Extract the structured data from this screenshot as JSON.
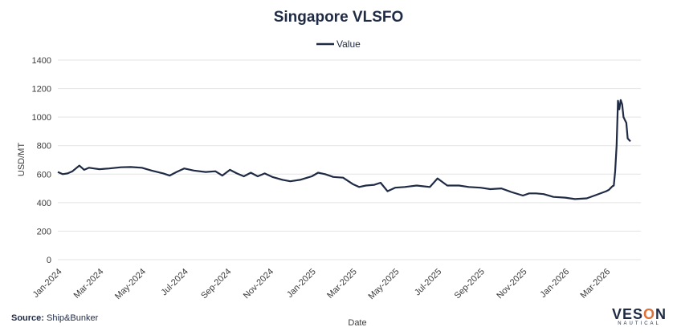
{
  "chart_data": {
    "type": "line",
    "title": "Singapore VLSFO",
    "xlabel": "Date",
    "ylabel": "USD/MT",
    "ylim": [
      0,
      1400
    ],
    "yticks": [
      0,
      200,
      400,
      600,
      800,
      1000,
      1200,
      1400
    ],
    "xlim": [
      "2024-01-01",
      "2026-04-20"
    ],
    "xticks": [
      "Jan-2024",
      "Mar-2024",
      "May-2024",
      "Jul-2024",
      "Sep-2024",
      "Nov-2024",
      "Jan-2025",
      "Mar-2025",
      "May-2025",
      "Jul-2025",
      "Sep-2025",
      "Nov-2025",
      "Jan-2026",
      "Mar-2026"
    ],
    "xtick_dates": [
      "2024-01-01",
      "2024-03-01",
      "2024-05-01",
      "2024-07-01",
      "2024-09-01",
      "2024-11-01",
      "2025-01-01",
      "2025-03-01",
      "2025-05-01",
      "2025-07-01",
      "2025-09-01",
      "2025-11-01",
      "2026-01-01",
      "2026-03-01"
    ],
    "grid": true,
    "legend_position": "top-center",
    "series": [
      {
        "name": "Value",
        "color": "#1f2a44",
        "x": [
          "2024-01-01",
          "2024-01-08",
          "2024-01-15",
          "2024-01-22",
          "2024-02-01",
          "2024-02-08",
          "2024-02-15",
          "2024-02-22",
          "2024-03-01",
          "2024-03-15",
          "2024-04-01",
          "2024-04-15",
          "2024-05-01",
          "2024-05-15",
          "2024-06-01",
          "2024-06-10",
          "2024-06-20",
          "2024-07-01",
          "2024-07-15",
          "2024-08-01",
          "2024-08-15",
          "2024-08-25",
          "2024-09-05",
          "2024-09-15",
          "2024-09-25",
          "2024-10-05",
          "2024-10-15",
          "2024-10-25",
          "2024-11-05",
          "2024-11-20",
          "2024-12-01",
          "2024-12-15",
          "2025-01-01",
          "2025-01-10",
          "2025-01-20",
          "2025-02-01",
          "2025-02-15",
          "2025-03-01",
          "2025-03-10",
          "2025-03-20",
          "2025-04-01",
          "2025-04-10",
          "2025-04-20",
          "2025-05-01",
          "2025-05-15",
          "2025-06-01",
          "2025-06-10",
          "2025-06-20",
          "2025-07-01",
          "2025-07-15",
          "2025-08-01",
          "2025-08-15",
          "2025-09-01",
          "2025-09-15",
          "2025-10-01",
          "2025-10-15",
          "2025-11-01",
          "2025-11-10",
          "2025-11-20",
          "2025-12-01",
          "2025-12-15",
          "2026-01-01",
          "2026-01-15",
          "2026-02-01",
          "2026-02-15",
          "2026-03-01",
          "2026-03-05",
          "2026-03-08",
          "2026-03-10",
          "2026-03-12",
          "2026-03-14",
          "2026-03-16",
          "2026-03-18",
          "2026-03-20",
          "2026-03-22",
          "2026-03-24",
          "2026-03-26",
          "2026-03-28",
          "2026-03-30",
          "2026-04-01",
          "2026-04-05"
        ],
        "values": [
          615,
          600,
          605,
          620,
          660,
          630,
          645,
          640,
          635,
          640,
          648,
          650,
          645,
          625,
          605,
          590,
          615,
          640,
          625,
          615,
          620,
          590,
          630,
          605,
          585,
          610,
          585,
          605,
          580,
          560,
          550,
          560,
          585,
          610,
          600,
          580,
          575,
          530,
          510,
          520,
          525,
          540,
          480,
          505,
          510,
          520,
          515,
          510,
          570,
          520,
          520,
          510,
          505,
          495,
          500,
          475,
          450,
          465,
          465,
          460,
          440,
          435,
          425,
          430,
          455,
          480,
          490,
          505,
          515,
          520,
          620,
          800,
          1115,
          1055,
          1120,
          1090,
          1000,
          980,
          960,
          850,
          830
        ]
      }
    ],
    "source_label": "Source:",
    "source_value": "Ship&Bunker",
    "brand_name_start": "VES",
    "brand_name_o": "O",
    "brand_name_end": "N",
    "brand_sub": "NAUTICAL"
  }
}
